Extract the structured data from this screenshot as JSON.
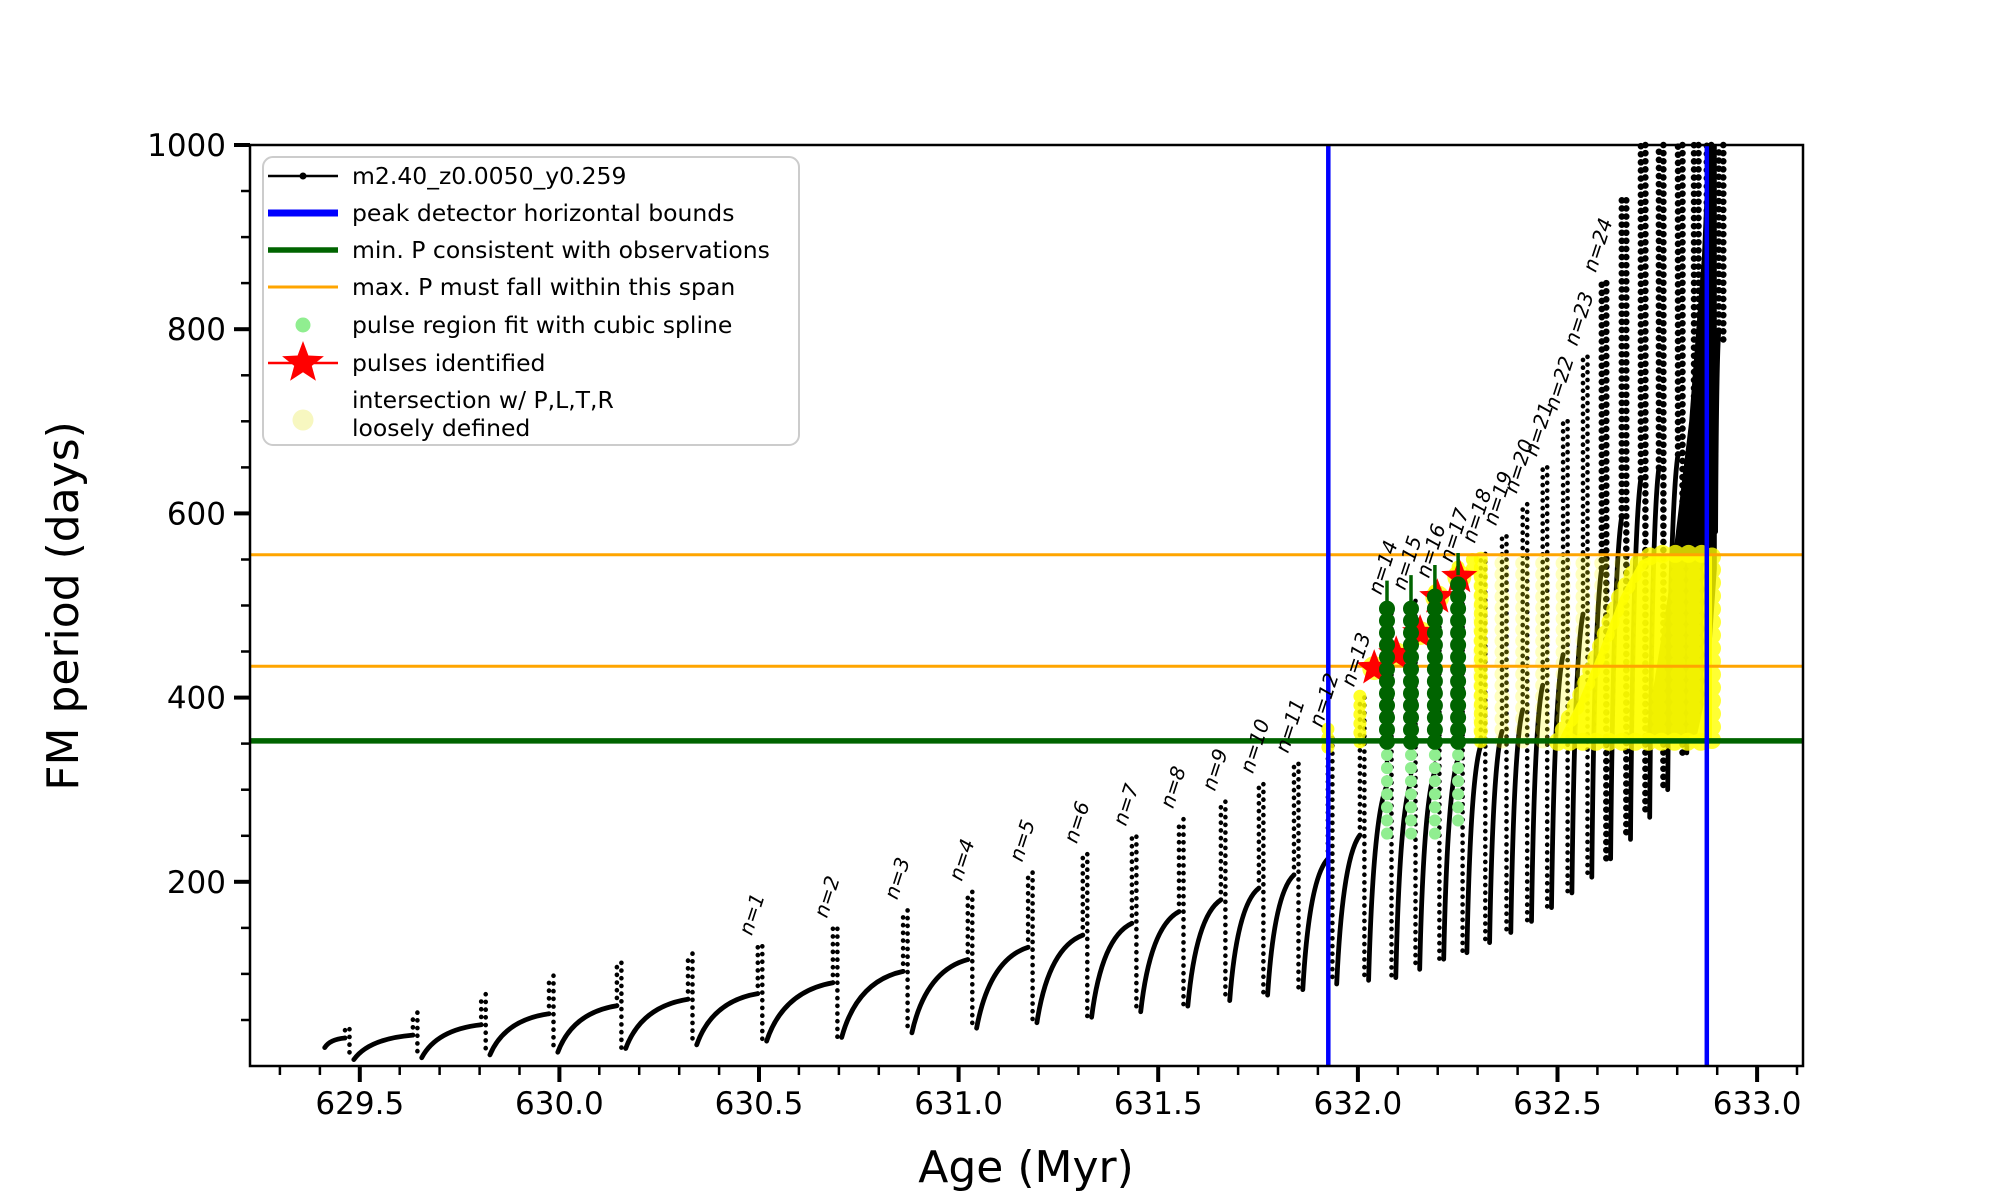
{
  "colors": {
    "black": "#000000",
    "blue": "#0000ff",
    "dark_green": "#006400",
    "orange": "#ffa500",
    "light_green": "#90ee90",
    "red": "#ff0000",
    "yellow": "#ffff00",
    "pale_yellow": "#f7f7c0",
    "legend_border": "#cccccc"
  },
  "legend": {
    "items": [
      {
        "marker": "line-dot",
        "color": "#000000",
        "lines": [
          "m2.40_z0.0050_y0.259"
        ]
      },
      {
        "marker": "thick-line",
        "color": "#0000ff",
        "lines": [
          "peak detector horizontal bounds"
        ]
      },
      {
        "marker": "thick-line",
        "color": "#006400",
        "lines": [
          "min. P consistent with observations"
        ]
      },
      {
        "marker": "thin-line",
        "color": "#ffa500",
        "lines": [
          "max. P must fall within this span"
        ]
      },
      {
        "marker": "dot",
        "color": "#90ee90",
        "lines": [
          "pulse region fit with cubic spline"
        ]
      },
      {
        "marker": "star-line",
        "color": "#ff0000",
        "lines": [
          "pulses identified"
        ]
      },
      {
        "marker": "big-dot",
        "color": "#f7f7c0",
        "lines": [
          "intersection w/ P,L,T,R",
          "loosely defined"
        ]
      }
    ]
  },
  "chart_data": {
    "type": "line",
    "title": "",
    "xlabel": "Age (Myr)",
    "ylabel": "FM period (days)",
    "xlim": [
      629.225,
      633.115
    ],
    "ylim": [
      0,
      1000
    ],
    "x_major_ticks": [
      629.5,
      630.0,
      630.5,
      631.0,
      631.5,
      632.0,
      632.5,
      633.0
    ],
    "x_tick_labels": [
      "629.5",
      "630.0",
      "630.5",
      "631.0",
      "631.5",
      "632.0",
      "632.5",
      "633.0"
    ],
    "x_minor_step": 0.1,
    "y_major_ticks": [
      200,
      400,
      600,
      800,
      1000
    ],
    "y_tick_labels": [
      "200",
      "400",
      "600",
      "800",
      "1000"
    ],
    "y_minor_step": 50,
    "grid": false,
    "series_label": "m2.40_z0.0050_y0.259",
    "peak_detector_bounds_x": [
      631.926,
      632.874
    ],
    "min_P_line_y": 353,
    "max_P_span_y": [
      434,
      555
    ],
    "n_label_prefix": "n=",
    "start": {
      "x": 629.402,
      "v": 20
    },
    "cycles": [
      {
        "x": 629.463,
        "p": 40,
        "d": 7
      },
      {
        "x": 629.633,
        "p": 58,
        "d": 9
      },
      {
        "x": 629.804,
        "p": 78,
        "d": 12
      },
      {
        "x": 629.974,
        "p": 98,
        "d": 15
      },
      {
        "x": 630.144,
        "p": 112,
        "d": 19
      },
      {
        "x": 630.322,
        "p": 122,
        "d": 23
      },
      {
        "x": 630.497,
        "p": 130,
        "d": 27,
        "n": 1
      },
      {
        "x": 630.685,
        "p": 149,
        "d": 31,
        "n": 2
      },
      {
        "x": 630.861,
        "p": 169,
        "d": 36,
        "n": 3
      },
      {
        "x": 631.023,
        "p": 189,
        "d": 41,
        "n": 4
      },
      {
        "x": 631.174,
        "p": 210,
        "d": 47,
        "n": 5
      },
      {
        "x": 631.311,
        "p": 230,
        "d": 53,
        "n": 6
      },
      {
        "x": 631.434,
        "p": 249,
        "d": 59,
        "n": 7
      },
      {
        "x": 631.552,
        "p": 268,
        "d": 65,
        "n": 8
      },
      {
        "x": 631.657,
        "p": 287,
        "d": 71,
        "n": 9
      },
      {
        "x": 631.752,
        "p": 306,
        "d": 77,
        "n": 10
      },
      {
        "x": 631.84,
        "p": 328,
        "d": 83,
        "n": 11
      },
      {
        "x": 631.925,
        "p": 356,
        "d": 89,
        "n": 12
      },
      {
        "x": 632.005,
        "p": 400,
        "d": 93,
        "n": 13
      },
      {
        "x": 632.073,
        "p": 500,
        "d": 96,
        "n": 14
      },
      {
        "x": 632.133,
        "p": 505,
        "d": 105,
        "n": 15
      },
      {
        "x": 632.193,
        "p": 518,
        "d": 116,
        "n": 16
      },
      {
        "x": 632.251,
        "p": 535,
        "d": 123,
        "n": 17
      },
      {
        "x": 632.308,
        "p": 556,
        "d": 134,
        "n": 18
      },
      {
        "x": 632.361,
        "p": 575,
        "d": 145,
        "n": 19
      },
      {
        "x": 632.413,
        "p": 610,
        "d": 157,
        "n": 20
      },
      {
        "x": 632.463,
        "p": 650,
        "d": 172,
        "n": 21
      },
      {
        "x": 632.514,
        "p": 700,
        "d": 188,
        "n": 22
      },
      {
        "x": 632.564,
        "p": 770,
        "d": 205,
        "n": 23
      },
      {
        "x": 632.611,
        "p": 850,
        "d": 225,
        "n": 24
      },
      {
        "x": 632.661,
        "p": 940,
        "d": 246
      },
      {
        "x": 632.709,
        "p": 1000,
        "d": 270
      },
      {
        "x": 632.754,
        "p": 1000,
        "d": 300
      },
      {
        "x": 632.802,
        "p": 1000,
        "d": 340
      },
      {
        "x": 632.842,
        "p": 1000,
        "d": 430
      },
      {
        "x": 632.874,
        "p": 1000,
        "d": 580
      },
      {
        "x": 632.904,
        "p": 1000,
        "d": 788
      }
    ],
    "black_mass_polygon": [
      [
        632.719,
        352
      ],
      [
        632.78,
        520
      ],
      [
        632.83,
        700
      ],
      [
        632.862,
        880
      ],
      [
        632.874,
        1000
      ],
      [
        632.899,
        1000
      ],
      [
        632.899,
        540
      ],
      [
        632.88,
        420
      ],
      [
        632.85,
        360
      ],
      [
        632.72,
        352
      ]
    ],
    "pulse_bars": {
      "dark_bottom": 352,
      "bars": [
        {
          "x": 632.073,
          "dark_top": 497,
          "stem_top": 527,
          "tail_bottom": 243
        },
        {
          "x": 632.133,
          "dark_top": 503,
          "stem_top": 533,
          "tail_bottom": 245
        },
        {
          "x": 632.193,
          "dark_top": 516,
          "stem_top": 544,
          "tail_bottom": 249
        },
        {
          "x": 632.251,
          "dark_top": 533,
          "stem_top": 557,
          "tail_bottom": 253
        }
      ]
    },
    "stars": [
      {
        "x": 632.041,
        "v": 432
      },
      {
        "x": 632.096,
        "v": 447
      },
      {
        "x": 632.156,
        "v": 470
      },
      {
        "x": 632.199,
        "v": 509
      },
      {
        "x": 632.254,
        "v": 531
      }
    ],
    "yellow": {
      "faint_span": [
        353,
        552
      ],
      "faint_x_min": 632.3,
      "faint_x_max": 632.85,
      "bright_column_x": 632.308,
      "clusters": [
        {
          "x": 631.925,
          "v1": 346,
          "v2": 374
        },
        {
          "x": 632.005,
          "v1": 352,
          "v2": 406
        },
        {
          "x": 632.193,
          "v1": 496,
          "v2": 521
        },
        {
          "x": 632.251,
          "v1": 512,
          "v2": 549
        },
        {
          "x": 632.287,
          "v1": 540,
          "v2": 556
        }
      ],
      "wedge_polygon": [
        [
          632.501,
          352
        ],
        [
          632.557,
          400
        ],
        [
          632.606,
          452
        ],
        [
          632.656,
          508
        ],
        [
          632.706,
          548
        ],
        [
          632.744,
          556
        ],
        [
          632.887,
          556
        ],
        [
          632.887,
          352
        ]
      ]
    }
  }
}
